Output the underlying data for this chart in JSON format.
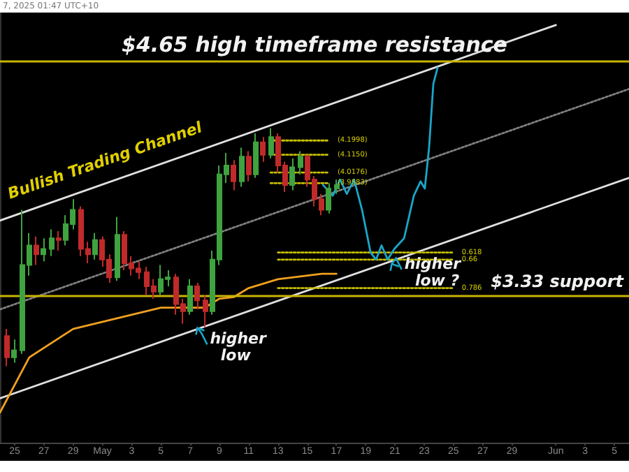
{
  "chart_data": {
    "type": "candlestick",
    "xlim": [
      "2025-04-24",
      "2025-06-06"
    ],
    "ylim": [
      2.5,
      4.92
    ],
    "tick_labels": "x",
    "grid": false,
    "marker": "none",
    "xticks": [
      {
        "value": "2025-04-25",
        "label": "25"
      },
      {
        "value": "2025-04-27",
        "label": "27"
      },
      {
        "value": "2025-04-29",
        "label": "29"
      },
      {
        "value": "2025-05-01",
        "label": "May"
      },
      {
        "value": "2025-05-03",
        "label": "3"
      },
      {
        "value": "2025-05-05",
        "label": "5"
      },
      {
        "value": "2025-05-07",
        "label": "7"
      },
      {
        "value": "2025-05-09",
        "label": "9"
      },
      {
        "value": "2025-05-11",
        "label": "11"
      },
      {
        "value": "2025-05-13",
        "label": "13"
      },
      {
        "value": "2025-05-15",
        "label": "15"
      },
      {
        "value": "2025-05-17",
        "label": "17"
      },
      {
        "value": "2025-05-19",
        "label": "19"
      },
      {
        "value": "2025-05-21",
        "label": "21"
      },
      {
        "value": "2025-05-23",
        "label": "23"
      },
      {
        "value": "2025-05-25",
        "label": "25"
      },
      {
        "value": "2025-05-27",
        "label": "27"
      },
      {
        "value": "2025-05-29",
        "label": "29"
      },
      {
        "value": "2025-06-01",
        "label": "Jun"
      },
      {
        "value": "2025-06-03",
        "label": "3"
      },
      {
        "value": "2025-06-05",
        "label": "5"
      }
    ],
    "x": [
      "2025-04-24T12:00",
      "2025-04-25T00:00",
      "2025-04-25T12:00",
      "2025-04-26T00:00",
      "2025-04-26T12:00",
      "2025-04-27T00:00",
      "2025-04-27T12:00",
      "2025-04-28T00:00",
      "2025-04-28T12:00",
      "2025-04-29T00:00",
      "2025-04-29T12:00",
      "2025-04-30T00:00",
      "2025-04-30T12:00",
      "2025-05-01T00:00",
      "2025-05-01T12:00",
      "2025-05-02T00:00",
      "2025-05-02T12:00",
      "2025-05-03T00:00",
      "2025-05-03T12:00",
      "2025-05-04T00:00",
      "2025-05-04T12:00",
      "2025-05-05T00:00",
      "2025-05-05T12:00",
      "2025-05-06T00:00",
      "2025-05-06T12:00",
      "2025-05-07T00:00",
      "2025-05-07T12:00",
      "2025-05-08T00:00",
      "2025-05-08T12:00",
      "2025-05-09T00:00",
      "2025-05-09T12:00",
      "2025-05-10T00:00",
      "2025-05-10T12:00",
      "2025-05-11T00:00",
      "2025-05-11T12:00",
      "2025-05-12T00:00",
      "2025-05-12T12:00",
      "2025-05-13T00:00",
      "2025-05-13T12:00",
      "2025-05-14T00:00",
      "2025-05-14T12:00",
      "2025-05-15T00:00",
      "2025-05-15T12:00",
      "2025-05-16T00:00",
      "2025-05-16T12:00",
      "2025-05-17T00:00"
    ],
    "ohlc": [
      [
        3.1,
        3.14,
        2.93,
        2.98
      ],
      [
        2.98,
        3.08,
        2.95,
        3.02
      ],
      [
        3.02,
        3.81,
        3.0,
        3.5
      ],
      [
        3.5,
        3.68,
        3.44,
        3.61
      ],
      [
        3.61,
        3.66,
        3.5,
        3.56
      ],
      [
        3.56,
        3.65,
        3.52,
        3.59
      ],
      [
        3.59,
        3.7,
        3.55,
        3.65
      ],
      [
        3.65,
        3.69,
        3.58,
        3.64
      ],
      [
        3.64,
        3.78,
        3.61,
        3.73
      ],
      [
        3.73,
        3.87,
        3.7,
        3.81
      ],
      [
        3.81,
        3.83,
        3.55,
        3.59
      ],
      [
        3.59,
        3.63,
        3.51,
        3.56
      ],
      [
        3.56,
        3.68,
        3.53,
        3.64
      ],
      [
        3.64,
        3.66,
        3.49,
        3.53
      ],
      [
        3.53,
        3.56,
        3.4,
        3.43
      ],
      [
        3.43,
        3.77,
        3.41,
        3.67
      ],
      [
        3.67,
        3.69,
        3.47,
        3.51
      ],
      [
        3.51,
        3.55,
        3.44,
        3.48
      ],
      [
        3.48,
        3.52,
        3.42,
        3.46
      ],
      [
        3.46,
        3.49,
        3.33,
        3.38
      ],
      [
        3.38,
        3.42,
        3.31,
        3.35
      ],
      [
        3.35,
        3.5,
        3.33,
        3.42
      ],
      [
        3.42,
        3.47,
        3.38,
        3.43
      ],
      [
        3.43,
        3.45,
        3.22,
        3.28
      ],
      [
        3.28,
        3.31,
        3.17,
        3.24
      ],
      [
        3.24,
        3.42,
        3.22,
        3.38
      ],
      [
        3.38,
        3.4,
        3.25,
        3.3
      ],
      [
        3.3,
        3.33,
        3.15,
        3.24
      ],
      [
        3.24,
        3.58,
        3.22,
        3.53
      ],
      [
        3.53,
        4.06,
        3.5,
        4.01
      ],
      [
        4.01,
        4.13,
        3.96,
        4.06
      ],
      [
        4.06,
        4.09,
        3.92,
        3.97
      ],
      [
        3.97,
        4.16,
        3.94,
        4.11
      ],
      [
        4.11,
        4.14,
        3.97,
        4.01
      ],
      [
        4.01,
        4.24,
        3.99,
        4.19
      ],
      [
        4.19,
        4.22,
        4.08,
        4.12
      ],
      [
        4.12,
        4.27,
        4.1,
        4.22
      ],
      [
        4.22,
        4.24,
        4.02,
        4.06
      ],
      [
        4.06,
        4.08,
        3.91,
        3.95
      ],
      [
        3.95,
        4.1,
        3.92,
        4.05
      ],
      [
        4.05,
        4.14,
        4.01,
        4.11
      ],
      [
        4.11,
        4.12,
        3.94,
        3.98
      ],
      [
        3.98,
        4.0,
        3.83,
        3.87
      ],
      [
        3.87,
        3.9,
        3.78,
        3.81
      ],
      [
        3.81,
        3.96,
        3.79,
        3.93
      ],
      [
        3.93,
        3.98,
        3.9,
        3.95
      ]
    ],
    "colors": [
      "#c02a2a",
      "#3fa33f",
      "#3fa33f",
      "#3fa33f",
      "#c02a2a",
      "#3fa33f",
      "#3fa33f",
      "#c02a2a",
      "#3fa33f",
      "#3fa33f",
      "#c02a2a",
      "#c02a2a",
      "#3fa33f",
      "#c02a2a",
      "#c02a2a",
      "#3fa33f",
      "#c02a2a",
      "#c02a2a",
      "#c02a2a",
      "#c02a2a",
      "#c02a2a",
      "#3fa33f",
      "#3fa33f",
      "#c02a2a",
      "#c02a2a",
      "#3fa33f",
      "#c02a2a",
      "#c02a2a",
      "#3fa33f",
      "#3fa33f",
      "#3fa33f",
      "#c02a2a",
      "#3fa33f",
      "#c02a2a",
      "#3fa33f",
      "#c02a2a",
      "#3fa33f",
      "#c02a2a",
      "#c02a2a",
      "#3fa33f",
      "#3fa33f",
      "#c02a2a",
      "#c02a2a",
      "#c02a2a",
      "#3fa33f",
      "#3fa33f"
    ],
    "series": [
      {
        "type": "line",
        "color": "#e0e0e0",
        "x": [
          "2025-04-24",
          "2025-06-01"
        ],
        "values": [
          3.75,
          4.85
        ]
      },
      {
        "type": "line",
        "color": "#808080",
        "line_style": "dotted",
        "x": [
          "2025-04-24",
          "2025-06-06"
        ],
        "values": [
          3.25,
          4.49
        ]
      },
      {
        "type": "line",
        "color": "#e0e0e0",
        "x": [
          "2025-04-24",
          "2025-06-06"
        ],
        "values": [
          2.75,
          3.99
        ]
      },
      {
        "type": "line",
        "color": "#f0a020",
        "x": [
          "2025-04-24",
          "2025-04-26",
          "2025-04-29",
          "2025-05-02",
          "2025-05-05",
          "2025-05-08",
          "2025-05-09",
          "2025-05-10",
          "2025-05-11",
          "2025-05-13",
          "2025-05-16",
          "2025-05-17"
        ],
        "values": [
          2.67,
          2.98,
          3.14,
          3.2,
          3.26,
          3.26,
          3.31,
          3.32,
          3.37,
          3.42,
          3.45,
          3.45
        ]
      },
      {
        "type": "line",
        "color": "#c8c000",
        "line_style": "dotted",
        "x": [
          "2025-05-12T12:00",
          "2025-05-16T12:00"
        ],
        "values": [
          4.2,
          4.2
        ]
      },
      {
        "type": "line",
        "color": "#c8c000",
        "line_style": "dotted",
        "x": [
          "2025-05-12T12:00",
          "2025-05-16T12:00"
        ],
        "values": [
          4.12,
          4.12
        ]
      },
      {
        "type": "line",
        "color": "#c8c000",
        "line_style": "dotted",
        "x": [
          "2025-05-12T12:00",
          "2025-05-16T12:00"
        ],
        "values": [
          4.02,
          4.02
        ]
      },
      {
        "type": "line",
        "color": "#c8c000",
        "line_style": "dotted",
        "x": [
          "2025-05-12T12:00",
          "2025-05-16T12:00"
        ],
        "values": [
          3.96,
          3.96
        ]
      },
      {
        "type": "line",
        "color": "#c8c000",
        "line_style": "dotted",
        "x": [
          "2025-05-13",
          "2025-05-25"
        ],
        "values": [
          3.57,
          3.57
        ]
      },
      {
        "type": "line",
        "color": "#c8c000",
        "line_style": "dotted",
        "x": [
          "2025-05-13",
          "2025-05-25"
        ],
        "values": [
          3.53,
          3.53
        ]
      },
      {
        "type": "line",
        "color": "#c8c000",
        "line_style": "dotted",
        "x": [
          "2025-05-13",
          "2025-05-25"
        ],
        "values": [
          3.37,
          3.37
        ]
      },
      {
        "type": "line",
        "color": "#1aa6c8",
        "x": [
          "2025-05-16T02:00",
          "2025-05-16T18:00",
          "2025-05-17T06:00",
          "2025-05-17T17:00",
          "2025-05-18T05:00",
          "2025-05-18T18:00",
          "2025-05-19T08:00",
          "2025-05-19T17:00",
          "2025-05-20T02:00",
          "2025-05-20T12:00",
          "2025-05-20T23:00",
          "2025-05-21T15:00",
          "2025-05-22T07:00",
          "2025-05-22T18:00",
          "2025-05-23T01:00",
          "2025-05-23T08:00",
          "2025-05-23T15:00",
          "2025-05-23T22:00"
        ],
        "values": [
          3.95,
          3.89,
          3.98,
          3.9,
          3.98,
          3.81,
          3.57,
          3.53,
          3.61,
          3.53,
          3.59,
          3.65,
          3.89,
          3.97,
          3.93,
          4.16,
          4.52,
          4.61
        ]
      }
    ],
    "ref_lines": [
      {
        "axis": "y",
        "value": 4.65,
        "label": "$4.65 high timeframe resistance",
        "color": "#c8b400"
      },
      {
        "axis": "y",
        "value": 3.33,
        "label": "$3.33 support",
        "color": "#c8b400"
      }
    ],
    "annotations": [
      "7, 2025 01:47 UTC+10",
      "Bullish Trading Channel",
      {
        "text": "higher low",
        "x": "2025-05-07T05:00",
        "y": 3.17
      },
      {
        "text": "higher low ?",
        "x": "2025-05-20T12:00",
        "y": 3.53
      },
      {
        "text": "(4.1998)",
        "x": "2025-05-16T12:00",
        "y": 4.2
      },
      {
        "text": "(4.1150)",
        "x": "2025-05-16T12:00",
        "y": 4.12
      },
      {
        "text": "(4.0176)",
        "x": "2025-05-16T12:00",
        "y": 4.02
      },
      {
        "text": "(3.9583)",
        "x": "2025-05-16T12:00",
        "y": 3.96
      },
      {
        "text": "0.618",
        "x": "2025-05-25",
        "y": 3.57
      },
      {
        "text": "0.66",
        "x": "2025-05-25",
        "y": 3.53
      },
      {
        "text": "0.786",
        "x": "2025-05-25",
        "y": 3.37
      }
    ]
  }
}
